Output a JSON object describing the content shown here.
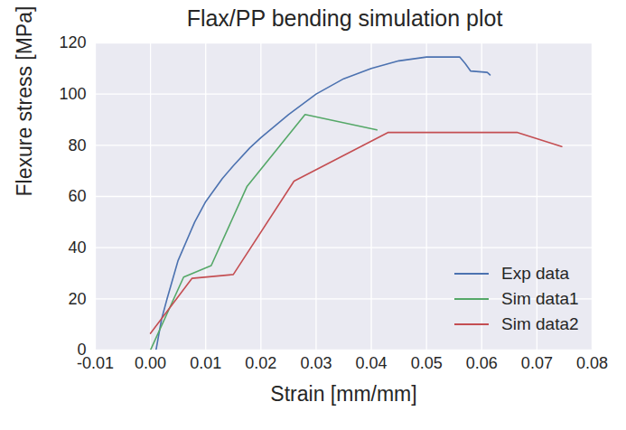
{
  "chart_data": {
    "type": "line",
    "title": "Flax/PP bending simulation plot",
    "x_label": "Strain [mm/mm]",
    "y_label": "Flexure stress [MPa]",
    "xlim": [
      -0.01,
      0.08
    ],
    "xticks": [
      -0.01,
      {
        "value": 0,
        "label": "0.00"
      },
      0.01,
      0.02,
      0.03,
      0.04,
      0.05,
      0.06,
      0.07,
      0.08
    ],
    "ylim": [
      0,
      120
    ],
    "yticks": [
      0,
      20,
      40,
      60,
      80,
      100,
      120
    ],
    "grid": true,
    "legend": "lower right",
    "series": [
      {
        "name": "Exp data",
        "color": "#4c72b0",
        "x": [
          0.001,
          0.002,
          0.003,
          0.005,
          0.008,
          0.01,
          0.013,
          0.015,
          0.018,
          0.02,
          0.025,
          0.03,
          0.035,
          0.04,
          0.045,
          0.05,
          0.053,
          0.056,
          0.057,
          0.058,
          0.061,
          0.0615
        ],
        "values": [
          0,
          12,
          20,
          35,
          50,
          58,
          67,
          72,
          79,
          83,
          92,
          100,
          106,
          110,
          113,
          114.5,
          114.5,
          114.5,
          112,
          109,
          108.5,
          107.5
        ]
      },
      {
        "name": "Sim data1",
        "color": "#55a868",
        "x": [
          0.0,
          0.006,
          0.011,
          0.0175,
          0.028,
          0.041
        ],
        "values": [
          0,
          28.5,
          33,
          64,
          92,
          86
        ]
      },
      {
        "name": "Sim data2",
        "color": "#c44e52",
        "x": [
          0.0,
          0.0075,
          0.015,
          0.026,
          0.043,
          0.0665,
          0.0745
        ],
        "values": [
          6.5,
          28,
          29.5,
          66,
          85,
          85,
          79.5
        ]
      }
    ]
  }
}
